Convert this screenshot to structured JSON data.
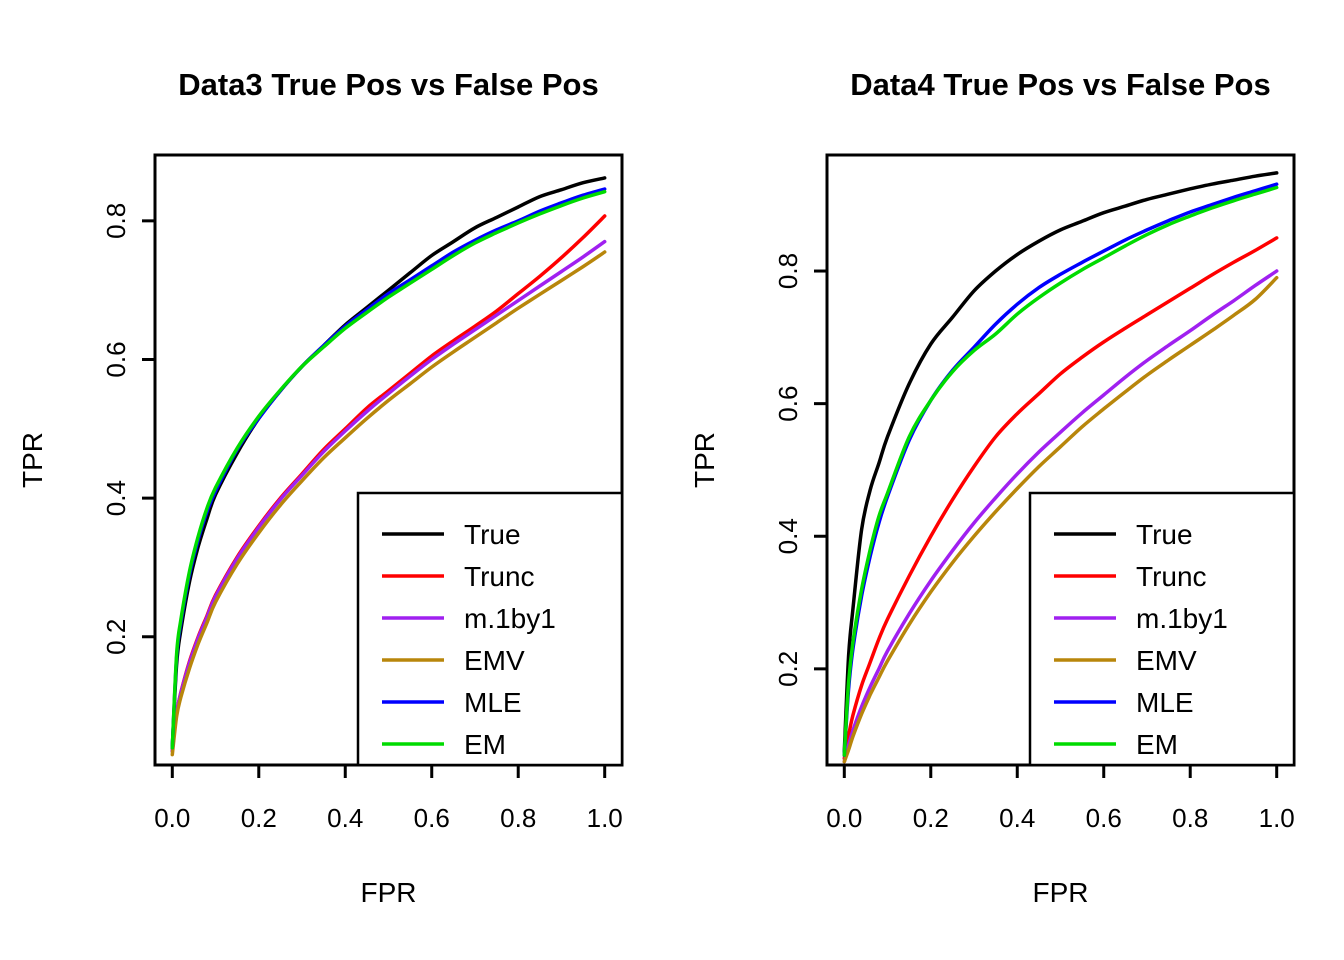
{
  "figure": {
    "background": "#FFFFFF"
  },
  "chart_data": [
    {
      "type": "line",
      "title": "Data3 True Pos vs False Pos",
      "xlabel": "FPR",
      "ylabel": "TPR",
      "xticks": [
        0.0,
        0.2,
        0.4,
        0.6,
        0.8,
        1.0
      ],
      "yticks": [
        0.2,
        0.4,
        0.6,
        0.8
      ],
      "xlim": [
        -0.04,
        1.04
      ],
      "ylim": [
        0.015,
        0.895
      ],
      "grid": false,
      "legend_position": "bottomright",
      "x": [
        0,
        0.01,
        0.02,
        0.04,
        0.06,
        0.08,
        0.1,
        0.15,
        0.2,
        0.25,
        0.3,
        0.35,
        0.4,
        0.45,
        0.5,
        0.55,
        0.6,
        0.65,
        0.7,
        0.75,
        0.8,
        0.85,
        0.9,
        0.95,
        1.0
      ],
      "series": [
        {
          "name": "True",
          "color": "#000000",
          "values": [
            0.04,
            0.16,
            0.21,
            0.28,
            0.33,
            0.37,
            0.405,
            0.465,
            0.515,
            0.555,
            0.59,
            0.62,
            0.65,
            0.675,
            0.7,
            0.725,
            0.75,
            0.77,
            0.79,
            0.805,
            0.82,
            0.835,
            0.845,
            0.855,
            0.862
          ]
        },
        {
          "name": "Trunc",
          "color": "#FF0000",
          "values": [
            0.035,
            0.09,
            0.12,
            0.165,
            0.2,
            0.23,
            0.26,
            0.315,
            0.36,
            0.4,
            0.435,
            0.47,
            0.5,
            0.53,
            0.555,
            0.58,
            0.605,
            0.627,
            0.648,
            0.67,
            0.695,
            0.72,
            0.747,
            0.776,
            0.807
          ]
        },
        {
          "name": "m.1by1",
          "color": "#A020F0",
          "values": [
            0.035,
            0.09,
            0.119,
            0.163,
            0.198,
            0.228,
            0.258,
            0.313,
            0.358,
            0.398,
            0.433,
            0.467,
            0.497,
            0.525,
            0.551,
            0.576,
            0.6,
            0.622,
            0.643,
            0.664,
            0.685,
            0.706,
            0.727,
            0.748,
            0.77
          ]
        },
        {
          "name": "EMV",
          "color": "#B8860B",
          "values": [
            0.03,
            0.085,
            0.113,
            0.155,
            0.19,
            0.22,
            0.25,
            0.305,
            0.35,
            0.39,
            0.425,
            0.458,
            0.487,
            0.515,
            0.541,
            0.565,
            0.589,
            0.611,
            0.632,
            0.653,
            0.674,
            0.694,
            0.714,
            0.734,
            0.755
          ]
        },
        {
          "name": "MLE",
          "color": "#0000FF",
          "values": [
            0.04,
            0.17,
            0.22,
            0.29,
            0.34,
            0.38,
            0.41,
            0.47,
            0.515,
            0.555,
            0.59,
            0.62,
            0.648,
            0.672,
            0.695,
            0.715,
            0.735,
            0.755,
            0.772,
            0.787,
            0.8,
            0.814,
            0.826,
            0.837,
            0.846
          ]
        },
        {
          "name": "EM",
          "color": "#00DB00",
          "values": [
            0.04,
            0.175,
            0.225,
            0.295,
            0.345,
            0.385,
            0.415,
            0.472,
            0.518,
            0.556,
            0.59,
            0.618,
            0.645,
            0.668,
            0.69,
            0.71,
            0.73,
            0.75,
            0.768,
            0.783,
            0.797,
            0.81,
            0.822,
            0.833,
            0.842
          ]
        }
      ]
    },
    {
      "type": "line",
      "title": "Data4 True Pos vs False Pos",
      "xlabel": "FPR",
      "ylabel": "TPR",
      "xticks": [
        0.0,
        0.2,
        0.4,
        0.6,
        0.8,
        1.0
      ],
      "yticks": [
        0.2,
        0.4,
        0.6,
        0.8
      ],
      "xlim": [
        -0.04,
        1.04
      ],
      "ylim": [
        0.055,
        0.975
      ],
      "grid": false,
      "legend_position": "bottomright",
      "x": [
        0,
        0.01,
        0.02,
        0.04,
        0.06,
        0.08,
        0.1,
        0.15,
        0.2,
        0.25,
        0.3,
        0.35,
        0.4,
        0.45,
        0.5,
        0.55,
        0.6,
        0.65,
        0.7,
        0.75,
        0.8,
        0.85,
        0.9,
        0.95,
        1.0
      ],
      "series": [
        {
          "name": "True",
          "color": "#000000",
          "values": [
            0.075,
            0.22,
            0.29,
            0.41,
            0.47,
            0.51,
            0.55,
            0.63,
            0.69,
            0.73,
            0.77,
            0.8,
            0.825,
            0.845,
            0.862,
            0.875,
            0.888,
            0.898,
            0.908,
            0.916,
            0.924,
            0.931,
            0.937,
            0.943,
            0.948
          ]
        },
        {
          "name": "Trunc",
          "color": "#FF0000",
          "values": [
            0.065,
            0.1,
            0.13,
            0.175,
            0.21,
            0.245,
            0.275,
            0.34,
            0.4,
            0.455,
            0.505,
            0.55,
            0.585,
            0.615,
            0.645,
            0.67,
            0.693,
            0.714,
            0.734,
            0.754,
            0.774,
            0.794,
            0.813,
            0.831,
            0.85
          ]
        },
        {
          "name": "m.1by1",
          "color": "#A020F0",
          "values": [
            0.06,
            0.085,
            0.107,
            0.143,
            0.173,
            0.2,
            0.227,
            0.283,
            0.333,
            0.378,
            0.42,
            0.458,
            0.494,
            0.527,
            0.557,
            0.586,
            0.613,
            0.64,
            0.665,
            0.688,
            0.71,
            0.733,
            0.755,
            0.778,
            0.8
          ]
        },
        {
          "name": "EMV",
          "color": "#B8860B",
          "values": [
            0.06,
            0.078,
            0.098,
            0.132,
            0.161,
            0.187,
            0.212,
            0.267,
            0.316,
            0.36,
            0.4,
            0.437,
            0.472,
            0.505,
            0.535,
            0.565,
            0.592,
            0.618,
            0.643,
            0.666,
            0.688,
            0.71,
            0.733,
            0.757,
            0.79
          ]
        },
        {
          "name": "MLE",
          "color": "#0000FF",
          "values": [
            0.07,
            0.17,
            0.23,
            0.31,
            0.37,
            0.42,
            0.46,
            0.545,
            0.605,
            0.65,
            0.685,
            0.72,
            0.75,
            0.775,
            0.795,
            0.813,
            0.83,
            0.847,
            0.862,
            0.876,
            0.889,
            0.9,
            0.911,
            0.921,
            0.931
          ]
        },
        {
          "name": "EM",
          "color": "#00DB00",
          "values": [
            0.07,
            0.18,
            0.24,
            0.32,
            0.38,
            0.43,
            0.465,
            0.55,
            0.605,
            0.648,
            0.68,
            0.705,
            0.735,
            0.76,
            0.782,
            0.802,
            0.82,
            0.838,
            0.855,
            0.87,
            0.883,
            0.895,
            0.906,
            0.916,
            0.926
          ]
        }
      ]
    }
  ]
}
